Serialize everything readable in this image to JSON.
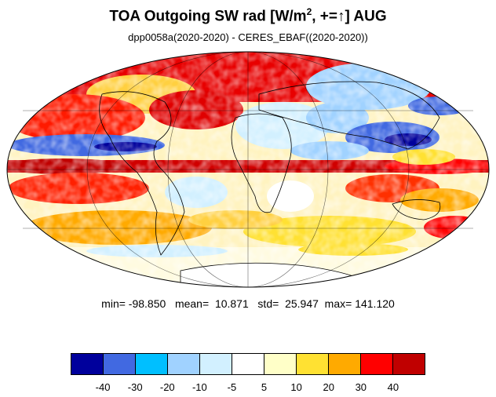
{
  "title": {
    "main": "TOA Outgoing SW rad [W/m",
    "superscript": "2",
    "suffix": ", +=↑] AUG"
  },
  "subtitle": "dpp0058a(2020-2020) - CERES_EBAF((2020-2020))",
  "stats": {
    "min": "-98.850",
    "mean": "10.871",
    "std": "25.947",
    "max": "141.120"
  },
  "colorbar": {
    "colors": [
      "#00009c",
      "#4169e1",
      "#00bfff",
      "#a0d2ff",
      "#d2f0ff",
      "#ffffff",
      "#ffffc8",
      "#ffe132",
      "#ffaa00",
      "#ff0000",
      "#c00000"
    ],
    "labels": [
      "-40",
      "-30",
      "-20",
      "-10",
      "-5",
      "5",
      "10",
      "20",
      "30",
      "40"
    ]
  },
  "map": {
    "projection": "mollweide",
    "field": "difference in TOA outgoing shortwave radiation",
    "colors": {
      "ocean_warm": "#ff0000",
      "ocean_deep_warm": "#c00000",
      "cool": "#4169e1",
      "land_outline": "#000000",
      "grid": "#000000"
    }
  }
}
